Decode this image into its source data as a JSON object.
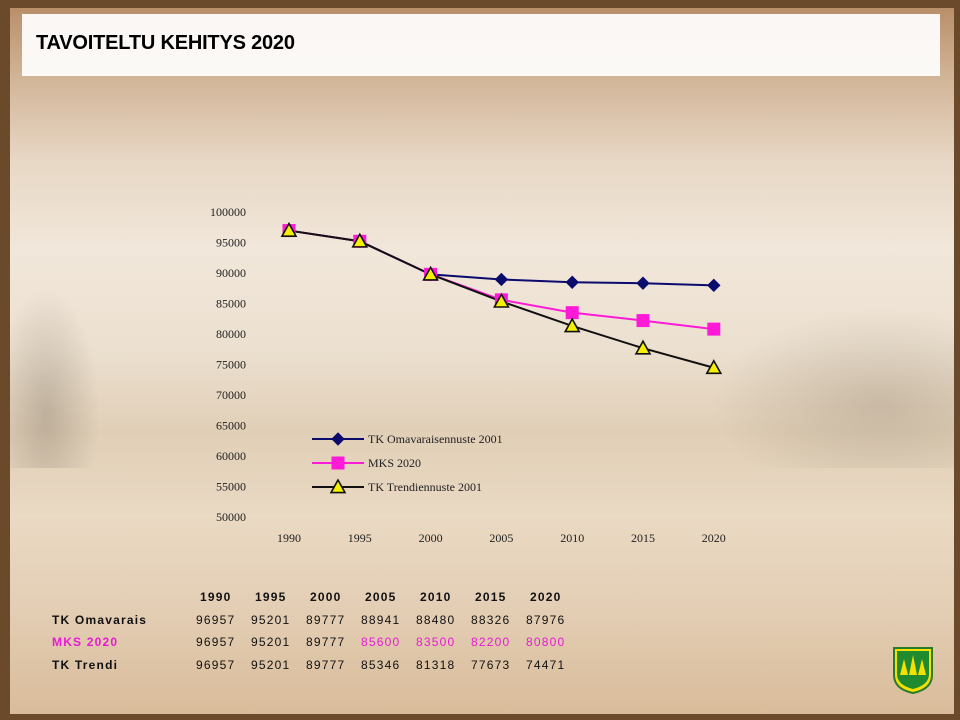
{
  "slide": {
    "title": "TAVOITELTU KEHITYS 2020"
  },
  "colors": {
    "omavarais": "#0b0b6e",
    "mks": "#ff1ad8",
    "trendi": "#111111",
    "trendi_marker_fill": "#f5f000"
  },
  "chart_data": {
    "type": "line",
    "title": "",
    "xlabel": "",
    "ylabel": "",
    "categories": [
      "1990",
      "1995",
      "2000",
      "2005",
      "2010",
      "2015",
      "2020"
    ],
    "ylim": [
      50000,
      100000
    ],
    "yticks": [
      "100000",
      "95000",
      "90000",
      "85000",
      "80000",
      "75000",
      "70000",
      "65000",
      "60000",
      "55000",
      "50000"
    ],
    "grid": false,
    "legend_position": "bottom-center",
    "series": [
      {
        "name": "TK Omavaraisennuste 2001",
        "marker": "diamond",
        "color_key": "omavarais",
        "values": [
          96957,
          95201,
          89777,
          88941,
          88480,
          88326,
          87976
        ]
      },
      {
        "name": "MKS 2020",
        "marker": "square",
        "color_key": "mks",
        "values": [
          96957,
          95201,
          89777,
          85600,
          83500,
          82200,
          80800
        ]
      },
      {
        "name": "TK Trendiennuste 2001",
        "marker": "triangle",
        "color_key": "trendi",
        "values": [
          96957,
          95201,
          89777,
          85346,
          81318,
          77673,
          74471
        ]
      }
    ]
  },
  "table": {
    "header": [
      "1990",
      "1995",
      "2000",
      "2005",
      "2010",
      "2015",
      "2020"
    ],
    "rows": [
      {
        "label": "TK Omavarais",
        "values": [
          "96957",
          "95201",
          "89777",
          "88941",
          "88480",
          "88326",
          "87976"
        ]
      },
      {
        "label": "MKS 2020",
        "values": [
          "96957",
          "95201",
          "89777",
          "85600",
          "83500",
          "82200",
          "80800"
        ]
      },
      {
        "label": "TK Trendi",
        "values": [
          "96957",
          "95201",
          "89777",
          "85346",
          "81318",
          "77673",
          "74471"
        ]
      }
    ]
  }
}
